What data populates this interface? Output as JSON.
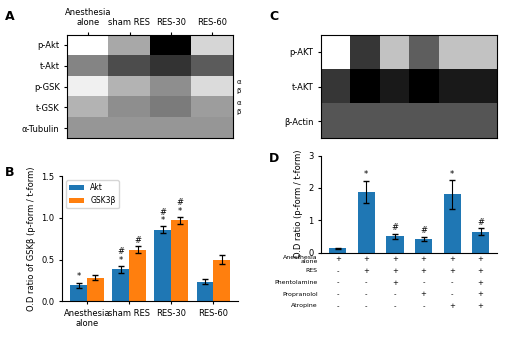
{
  "chart_data": [
    {
      "type": "heatmap",
      "panel": "A",
      "columns": [
        "Anesthesia\nalone",
        "sham RES",
        "RES-30",
        "RES-60"
      ],
      "rows": [
        "p-Akt",
        "t-Akt",
        "p-GSK",
        "t-GSK",
        "α-Tubulin"
      ],
      "values": [
        [
          0.08,
          0.45,
          0.92,
          0.3
        ],
        [
          0.55,
          0.72,
          0.78,
          0.68
        ],
        [
          0.18,
          0.42,
          0.52,
          0.28
        ],
        [
          0.42,
          0.52,
          0.58,
          0.48
        ],
        [
          0.5,
          0.5,
          0.5,
          0.5
        ]
      ],
      "sublabels": {
        "p-GSK": [
          "α",
          "β"
        ],
        "t-GSK": [
          "α",
          "β"
        ]
      }
    },
    {
      "type": "bar",
      "panel": "B",
      "categories": [
        "Anesthesia alone",
        "sham RES",
        "RES-30",
        "RES-60"
      ],
      "series": [
        {
          "name": "Akt",
          "values": [
            0.19,
            0.38,
            0.86,
            0.23
          ],
          "errors": [
            0.03,
            0.04,
            0.04,
            0.03
          ],
          "marks": [
            [
              "*"
            ],
            [
              "*",
              "#"
            ],
            [
              "*",
              "#"
            ],
            null
          ]
        },
        {
          "name": "GSK3β",
          "values": [
            0.28,
            0.62,
            0.97,
            0.5
          ],
          "errors": [
            0.03,
            0.04,
            0.04,
            0.05
          ],
          "marks": [
            null,
            [
              "#"
            ],
            [
              "*",
              "#"
            ],
            null
          ]
        }
      ],
      "ylabel": "O.D ratio of GSKβ (p-form / t-form)",
      "ylim": [
        0,
        1.5
      ],
      "yticks": [
        0.0,
        0.5,
        1.0,
        1.5
      ],
      "legend": "upper left"
    },
    {
      "type": "heatmap",
      "panel": "C",
      "rows": [
        "p-AKT",
        "t-AKT",
        "β-Actin"
      ],
      "values": [
        [
          0.08,
          0.55,
          0.28,
          0.48,
          0.28,
          0.28
        ],
        [
          0.55,
          0.65,
          0.6,
          0.65,
          0.6,
          0.6
        ],
        [
          0.5,
          0.5,
          0.5,
          0.5,
          0.5,
          0.5
        ]
      ],
      "tick_labels": "y"
    },
    {
      "type": "bar",
      "panel": "D",
      "values": [
        0.13,
        1.88,
        0.5,
        0.42,
        1.8,
        0.65
      ],
      "errors": [
        0.02,
        0.35,
        0.08,
        0.07,
        0.45,
        0.1
      ],
      "marks": [
        null,
        [
          "*"
        ],
        [
          "#"
        ],
        [
          "#"
        ],
        [
          "*"
        ],
        [
          "#"
        ]
      ],
      "ylabel": "O.D ratio (p-form / t-form)",
      "ylim": [
        0,
        3
      ],
      "yticks": [
        0,
        1,
        2,
        3
      ],
      "tick_labels": "y",
      "table": {
        "rows": [
          "Anesthesia\nalone",
          "RES",
          "Phentolamine",
          "Propranolol",
          "Atropine"
        ],
        "cells": [
          [
            "+",
            "+",
            "+",
            "+",
            "+",
            "+"
          ],
          [
            "-",
            "+",
            "+",
            "+",
            "+",
            "+"
          ],
          [
            "-",
            "-",
            "+",
            "-",
            "-",
            "+"
          ],
          [
            "-",
            "-",
            "-",
            "+",
            "-",
            "+"
          ],
          [
            "-",
            "-",
            "-",
            "-",
            "+",
            "+"
          ]
        ]
      }
    }
  ]
}
